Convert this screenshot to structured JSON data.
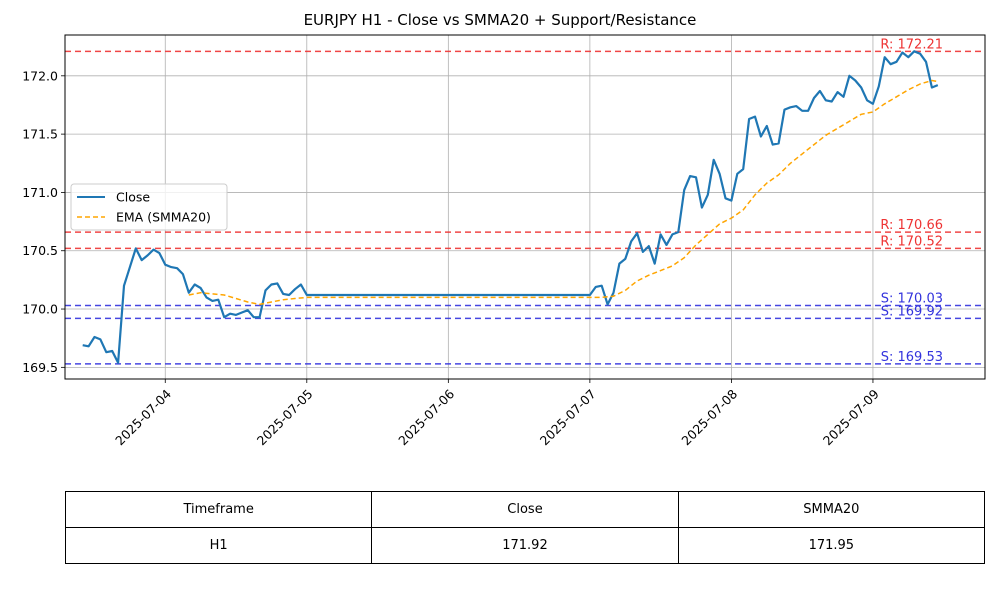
{
  "chart_data": {
    "type": "line",
    "title": "EURJPY H1 - Close vs SMMA20 + Support/Resistance",
    "xlabel": "",
    "ylabel": "",
    "ylim": [
      169.4,
      172.35
    ],
    "xlim": [
      "2025-07-03 07:00",
      "2025-07-09 19:00"
    ],
    "x_ticks": [
      "2025-07-04",
      "2025-07-05",
      "2025-07-06",
      "2025-07-07",
      "2025-07-08",
      "2025-07-09"
    ],
    "y_ticks": [
      "169.5",
      "170.0",
      "170.5",
      "171.0",
      "171.5",
      "172.0"
    ],
    "grid": true,
    "legend_position": "center-left",
    "series": [
      {
        "name": "Close",
        "color": "#1f77b4",
        "style": "solid",
        "points": [
          [
            "2025-07-03 10:00",
            169.69
          ],
          [
            "2025-07-03 11:00",
            169.68
          ],
          [
            "2025-07-03 12:00",
            169.76
          ],
          [
            "2025-07-03 13:00",
            169.74
          ],
          [
            "2025-07-03 14:00",
            169.63
          ],
          [
            "2025-07-03 15:00",
            169.64
          ],
          [
            "2025-07-03 16:00",
            169.54
          ],
          [
            "2025-07-03 17:00",
            170.2
          ],
          [
            "2025-07-03 18:00",
            170.36
          ],
          [
            "2025-07-03 19:00",
            170.52
          ],
          [
            "2025-07-03 20:00",
            170.42
          ],
          [
            "2025-07-03 21:00",
            170.46
          ],
          [
            "2025-07-03 22:00",
            170.51
          ],
          [
            "2025-07-03 23:00",
            170.48
          ],
          [
            "2025-07-04 00:00",
            170.38
          ],
          [
            "2025-07-04 01:00",
            170.36
          ],
          [
            "2025-07-04 02:00",
            170.35
          ],
          [
            "2025-07-04 03:00",
            170.3
          ],
          [
            "2025-07-04 04:00",
            170.14
          ],
          [
            "2025-07-04 05:00",
            170.21
          ],
          [
            "2025-07-04 06:00",
            170.18
          ],
          [
            "2025-07-04 07:00",
            170.1
          ],
          [
            "2025-07-04 08:00",
            170.07
          ],
          [
            "2025-07-04 09:00",
            170.08
          ],
          [
            "2025-07-04 10:00",
            169.93
          ],
          [
            "2025-07-04 11:00",
            169.96
          ],
          [
            "2025-07-04 12:00",
            169.95
          ],
          [
            "2025-07-04 13:00",
            169.97
          ],
          [
            "2025-07-04 14:00",
            169.99
          ],
          [
            "2025-07-04 15:00",
            169.93
          ],
          [
            "2025-07-04 16:00",
            169.93
          ],
          [
            "2025-07-04 17:00",
            170.16
          ],
          [
            "2025-07-04 18:00",
            170.21
          ],
          [
            "2025-07-04 19:00",
            170.22
          ],
          [
            "2025-07-04 20:00",
            170.13
          ],
          [
            "2025-07-04 21:00",
            170.12
          ],
          [
            "2025-07-04 22:00",
            170.17
          ],
          [
            "2025-07-04 23:00",
            170.21
          ],
          [
            "2025-07-05 00:00",
            170.12
          ],
          [
            "2025-07-07 00:00",
            170.12
          ],
          [
            "2025-07-07 01:00",
            170.19
          ],
          [
            "2025-07-07 02:00",
            170.2
          ],
          [
            "2025-07-07 03:00",
            170.04
          ],
          [
            "2025-07-07 04:00",
            170.14
          ],
          [
            "2025-07-07 05:00",
            170.39
          ],
          [
            "2025-07-07 06:00",
            170.43
          ],
          [
            "2025-07-07 07:00",
            170.58
          ],
          [
            "2025-07-07 08:00",
            170.65
          ],
          [
            "2025-07-07 09:00",
            170.49
          ],
          [
            "2025-07-07 10:00",
            170.54
          ],
          [
            "2025-07-07 11:00",
            170.39
          ],
          [
            "2025-07-07 12:00",
            170.64
          ],
          [
            "2025-07-07 13:00",
            170.55
          ],
          [
            "2025-07-07 14:00",
            170.64
          ],
          [
            "2025-07-07 15:00",
            170.66
          ],
          [
            "2025-07-07 16:00",
            171.02
          ],
          [
            "2025-07-07 17:00",
            171.14
          ],
          [
            "2025-07-07 18:00",
            171.13
          ],
          [
            "2025-07-07 19:00",
            170.87
          ],
          [
            "2025-07-07 20:00",
            170.98
          ],
          [
            "2025-07-07 21:00",
            171.28
          ],
          [
            "2025-07-07 22:00",
            171.16
          ],
          [
            "2025-07-07 23:00",
            170.95
          ],
          [
            "2025-07-08 00:00",
            170.93
          ],
          [
            "2025-07-08 01:00",
            171.16
          ],
          [
            "2025-07-08 02:00",
            171.2
          ],
          [
            "2025-07-08 03:00",
            171.63
          ],
          [
            "2025-07-08 04:00",
            171.65
          ],
          [
            "2025-07-08 05:00",
            171.48
          ],
          [
            "2025-07-08 06:00",
            171.57
          ],
          [
            "2025-07-08 07:00",
            171.41
          ],
          [
            "2025-07-08 08:00",
            171.42
          ],
          [
            "2025-07-08 09:00",
            171.71
          ],
          [
            "2025-07-08 10:00",
            171.73
          ],
          [
            "2025-07-08 11:00",
            171.74
          ],
          [
            "2025-07-08 12:00",
            171.7
          ],
          [
            "2025-07-08 13:00",
            171.7
          ],
          [
            "2025-07-08 14:00",
            171.81
          ],
          [
            "2025-07-08 15:00",
            171.87
          ],
          [
            "2025-07-08 16:00",
            171.79
          ],
          [
            "2025-07-08 17:00",
            171.78
          ],
          [
            "2025-07-08 18:00",
            171.86
          ],
          [
            "2025-07-08 19:00",
            171.82
          ],
          [
            "2025-07-08 20:00",
            172.0
          ],
          [
            "2025-07-08 21:00",
            171.96
          ],
          [
            "2025-07-08 22:00",
            171.9
          ],
          [
            "2025-07-08 23:00",
            171.79
          ],
          [
            "2025-07-09 00:00",
            171.76
          ],
          [
            "2025-07-09 01:00",
            171.91
          ],
          [
            "2025-07-09 02:00",
            172.16
          ],
          [
            "2025-07-09 03:00",
            172.1
          ],
          [
            "2025-07-09 04:00",
            172.12
          ],
          [
            "2025-07-09 05:00",
            172.2
          ],
          [
            "2025-07-09 06:00",
            172.16
          ],
          [
            "2025-07-09 07:00",
            172.21
          ],
          [
            "2025-07-09 08:00",
            172.19
          ],
          [
            "2025-07-09 09:00",
            172.12
          ],
          [
            "2025-07-09 10:00",
            171.9
          ],
          [
            "2025-07-09 11:00",
            171.92
          ]
        ]
      },
      {
        "name": "EMA (SMMA20)",
        "color": "#ffa500",
        "style": "dashed",
        "points": [
          [
            "2025-07-04 04:00",
            170.12
          ],
          [
            "2025-07-04 06:00",
            170.14
          ],
          [
            "2025-07-04 08:00",
            170.13
          ],
          [
            "2025-07-04 10:00",
            170.12
          ],
          [
            "2025-07-04 12:00",
            170.09
          ],
          [
            "2025-07-04 14:00",
            170.06
          ],
          [
            "2025-07-04 16:00",
            170.04
          ],
          [
            "2025-07-04 18:00",
            170.06
          ],
          [
            "2025-07-04 20:00",
            170.08
          ],
          [
            "2025-07-04 22:00",
            170.09
          ],
          [
            "2025-07-05 00:00",
            170.1
          ],
          [
            "2025-07-07 00:00",
            170.1
          ],
          [
            "2025-07-07 02:00",
            170.1
          ],
          [
            "2025-07-07 04:00",
            170.11
          ],
          [
            "2025-07-07 06:00",
            170.16
          ],
          [
            "2025-07-07 08:00",
            170.24
          ],
          [
            "2025-07-07 10:00",
            170.29
          ],
          [
            "2025-07-07 12:00",
            170.33
          ],
          [
            "2025-07-07 14:00",
            170.37
          ],
          [
            "2025-07-07 16:00",
            170.44
          ],
          [
            "2025-07-07 18:00",
            170.55
          ],
          [
            "2025-07-07 20:00",
            170.64
          ],
          [
            "2025-07-07 22:00",
            170.73
          ],
          [
            "2025-07-08 00:00",
            170.78
          ],
          [
            "2025-07-08 02:00",
            170.85
          ],
          [
            "2025-07-08 04:00",
            170.98
          ],
          [
            "2025-07-08 06:00",
            171.08
          ],
          [
            "2025-07-08 08:00",
            171.15
          ],
          [
            "2025-07-08 10:00",
            171.25
          ],
          [
            "2025-07-08 12:00",
            171.33
          ],
          [
            "2025-07-08 14:00",
            171.41
          ],
          [
            "2025-07-08 16:00",
            171.49
          ],
          [
            "2025-07-08 18:00",
            171.55
          ],
          [
            "2025-07-08 20:00",
            171.61
          ],
          [
            "2025-07-08 22:00",
            171.67
          ],
          [
            "2025-07-09 00:00",
            171.69
          ],
          [
            "2025-07-09 02:00",
            171.76
          ],
          [
            "2025-07-09 04:00",
            171.82
          ],
          [
            "2025-07-09 06:00",
            171.88
          ],
          [
            "2025-07-09 08:00",
            171.93
          ],
          [
            "2025-07-09 10:00",
            171.96
          ],
          [
            "2025-07-09 11:00",
            171.95
          ]
        ]
      }
    ],
    "levels": [
      {
        "kind": "resistance",
        "value": 172.21,
        "label": "R: 172.21",
        "color": "#ee3333"
      },
      {
        "kind": "resistance",
        "value": 170.66,
        "label": "R: 170.66",
        "color": "#ee3333"
      },
      {
        "kind": "resistance",
        "value": 170.52,
        "label": "R: 170.52",
        "color": "#ee3333"
      },
      {
        "kind": "support",
        "value": 170.03,
        "label": "S: 170.03",
        "color": "#3333dd"
      },
      {
        "kind": "support",
        "value": 169.92,
        "label": "S: 169.92",
        "color": "#3333dd"
      },
      {
        "kind": "support",
        "value": 169.53,
        "label": "S: 169.53",
        "color": "#3333dd"
      }
    ]
  },
  "table": {
    "headers": [
      "Timeframe",
      "Close",
      "SMMA20"
    ],
    "row": [
      "H1",
      "171.92",
      "171.95"
    ]
  }
}
